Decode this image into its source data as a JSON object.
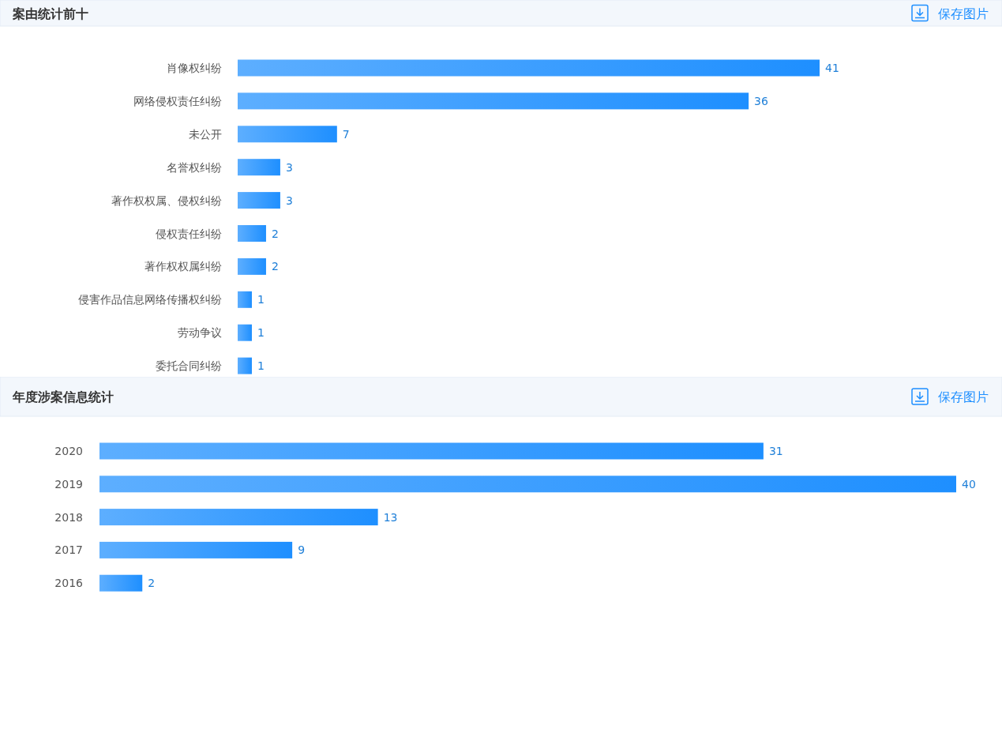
{
  "chart_data": [
    {
      "type": "bar",
      "orientation": "horizontal",
      "title": "案由统计前十",
      "annotations": [
        "保存图片"
      ],
      "data_labels": true,
      "color": "#1e8fff",
      "categories": [
        "肖像权纠纷",
        "网络侵权责任纠纷",
        "未公开",
        "名誉权纠纷",
        "著作权权属、侵权纠纷",
        "侵权责任纠纷",
        "著作权权属纠纷",
        "侵害作品信息网络传播权纠纷",
        "劳动争议",
        "委托合同纠纷"
      ],
      "values": [
        41,
        36,
        7,
        3,
        3,
        2,
        2,
        1,
        1,
        1
      ]
    },
    {
      "type": "bar",
      "orientation": "horizontal",
      "title": "年度涉案信息统计",
      "annotations": [
        "保存图片"
      ],
      "data_labels": true,
      "color": "#1e8fff",
      "categories": [
        "2020",
        "2019",
        "2018",
        "2017",
        "2016"
      ],
      "values": [
        31,
        40,
        13,
        9,
        2
      ]
    }
  ]
}
